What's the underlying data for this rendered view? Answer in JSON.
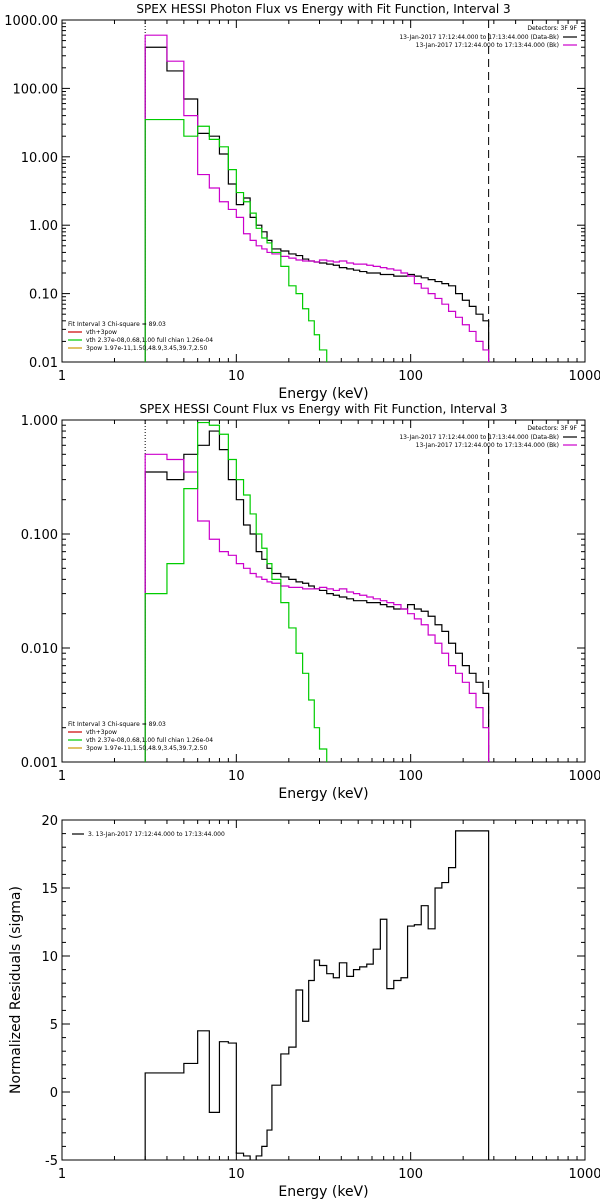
{
  "chart_data": [
    {
      "type": "line",
      "title": "SPEX HESSI Photon Flux vs Energy with Fit Function, Interval 3",
      "xlabel": "Energy (keV)",
      "ylabel": "",
      "xscale": "log",
      "yscale": "log",
      "xlim": [
        1,
        1000
      ],
      "ylim": [
        0.01,
        1000
      ],
      "xticks": [
        "1",
        "10",
        "100",
        "1000"
      ],
      "yticks": [
        "0.01",
        "0.10",
        "1.00",
        "10.00",
        "100.00",
        "1000.00"
      ],
      "legend_topright": {
        "header": "Detectors: 3F 9F",
        "entries": [
          {
            "text": "13-Jan-2017 17:12:44.000 to 17:13:44.000 (Data-Bk)",
            "color": "#000000"
          },
          {
            "text": "13-Jan-2017 17:12:44.000 to 17:13:44.000 (Bk)",
            "color": "#cc00cc"
          }
        ]
      },
      "legend_bottomleft": {
        "header": "Fit Interval 3   Chi-square = 89.03",
        "entries": [
          {
            "text": "vth+3pow",
            "color": "#cc0000"
          },
          {
            "text": "vth 2.37e-08,0.68,1.00  full chian 1.26e-04",
            "color": "#00cc00"
          },
          {
            "text": "3pow 1.97e-11,1.50,48.9,3.45,39.7,2.50",
            "color": "#cc9900"
          }
        ]
      },
      "vlines": [
        {
          "x": 3.0,
          "style": "dotted",
          "color": "#000000"
        },
        {
          "x": 280,
          "style": "dashed",
          "color": "#000000"
        }
      ],
      "series": [
        {
          "name": "Data-Bk",
          "color": "#000000",
          "step": true,
          "x": [
            3.0,
            4.0,
            5.0,
            6.0,
            7.0,
            8.0,
            9.0,
            10.0,
            11.0,
            12.0,
            13.0,
            14.0,
            15.0,
            16.0,
            18.0,
            20.0,
            22.0,
            24.0,
            26.0,
            28.0,
            30.0,
            33.0,
            36.0,
            39.0,
            43.0,
            47.0,
            51.0,
            56.0,
            61.0,
            67.0,
            73.0,
            80.0,
            88.0,
            96.0,
            105.0,
            115.0,
            126.0,
            138.0,
            151.0,
            165.0,
            181.0,
            198.0,
            217.0,
            237.0,
            260.0,
            280.0
          ],
          "y": [
            400,
            180,
            70,
            22,
            20,
            11,
            4.0,
            2.0,
            2.5,
            1.3,
            1.0,
            0.8,
            0.6,
            0.45,
            0.42,
            0.38,
            0.36,
            0.32,
            0.3,
            0.29,
            0.28,
            0.27,
            0.26,
            0.24,
            0.23,
            0.22,
            0.21,
            0.2,
            0.2,
            0.19,
            0.19,
            0.18,
            0.18,
            0.19,
            0.18,
            0.17,
            0.16,
            0.15,
            0.14,
            0.13,
            0.1,
            0.08,
            0.065,
            0.05,
            0.04,
            0.04
          ]
        },
        {
          "name": "Bk",
          "color": "#cc00cc",
          "step": true,
          "x": [
            3.0,
            4.0,
            5.0,
            6.0,
            7.0,
            8.0,
            9.0,
            10.0,
            11.0,
            12.0,
            13.0,
            14.0,
            15.0,
            16.0,
            18.0,
            20.0,
            22.0,
            24.0,
            26.0,
            28.0,
            30.0,
            33.0,
            36.0,
            39.0,
            43.0,
            47.0,
            51.0,
            56.0,
            61.0,
            67.0,
            73.0,
            80.0,
            88.0,
            96.0,
            105.0,
            115.0,
            126.0,
            138.0,
            151.0,
            165.0,
            181.0,
            198.0,
            217.0,
            237.0,
            260.0,
            280.0
          ],
          "y": [
            600,
            250,
            40,
            5.5,
            3.5,
            2.2,
            1.7,
            1.3,
            0.75,
            0.6,
            0.5,
            0.45,
            0.4,
            0.38,
            0.35,
            0.33,
            0.31,
            0.3,
            0.3,
            0.29,
            0.31,
            0.3,
            0.29,
            0.3,
            0.28,
            0.27,
            0.27,
            0.26,
            0.25,
            0.24,
            0.23,
            0.22,
            0.2,
            0.18,
            0.14,
            0.12,
            0.1,
            0.085,
            0.07,
            0.055,
            0.045,
            0.035,
            0.028,
            0.02,
            0.015,
            0.015
          ]
        },
        {
          "name": "vth",
          "color": "#00cc00",
          "step": true,
          "x": [
            3.0,
            4.0,
            5.0,
            6.0,
            7.0,
            8.0,
            9.0,
            10.0,
            11.0,
            12.0,
            13.0,
            14.0,
            15.0,
            16.0,
            18.0,
            20.0,
            22.0,
            24.0,
            26.0,
            28.0,
            30.0,
            33.0
          ],
          "y": [
            35,
            35,
            20,
            28,
            18,
            14,
            6.5,
            3.0,
            2.2,
            1.5,
            0.9,
            0.65,
            0.55,
            0.4,
            0.25,
            0.13,
            0.1,
            0.06,
            0.04,
            0.025,
            0.015,
            0.01
          ]
        }
      ]
    },
    {
      "type": "line",
      "title": "SPEX HESSI Count Flux vs Energy with Fit Function, Interval 3",
      "xlabel": "Energy (keV)",
      "ylabel": "",
      "xscale": "log",
      "yscale": "log",
      "xlim": [
        1,
        1000
      ],
      "ylim": [
        0.001,
        1.0
      ],
      "xticks": [
        "1",
        "10",
        "100",
        "1000"
      ],
      "yticks": [
        "0.001",
        "0.010",
        "0.100",
        "1.000"
      ],
      "legend_topright": {
        "header": "Detectors: 3F 9F",
        "entries": [
          {
            "text": "13-Jan-2017 17:12:44.000 to 17:13:44.000 (Data-Bk)",
            "color": "#000000"
          },
          {
            "text": "13-Jan-2017 17:12:44.000 to 17:13:44.000 (Bk)",
            "color": "#cc00cc"
          }
        ]
      },
      "legend_bottomleft": {
        "header": "Fit Interval 3   Chi-square = 89.03",
        "entries": [
          {
            "text": "vth+3pow",
            "color": "#cc0000"
          },
          {
            "text": "vth 2.37e-08,0.68,1.00  full chian 1.26e-04",
            "color": "#00cc00"
          },
          {
            "text": "3pow 1.97e-11,1.50,48.9,3.45,39.7,2.50",
            "color": "#cc9900"
          }
        ]
      },
      "vlines": [
        {
          "x": 3.0,
          "style": "dotted",
          "color": "#000000"
        },
        {
          "x": 280,
          "style": "dashed",
          "color": "#000000"
        }
      ],
      "series": [
        {
          "name": "Data-Bk",
          "color": "#000000",
          "step": true,
          "x": [
            3.0,
            4.0,
            5.0,
            6.0,
            7.0,
            8.0,
            9.0,
            10.0,
            11.0,
            12.0,
            13.0,
            14.0,
            15.0,
            16.0,
            18.0,
            20.0,
            22.0,
            24.0,
            26.0,
            28.0,
            30.0,
            33.0,
            36.0,
            39.0,
            43.0,
            47.0,
            51.0,
            56.0,
            61.0,
            67.0,
            73.0,
            80.0,
            88.0,
            96.0,
            105.0,
            115.0,
            126.0,
            138.0,
            151.0,
            165.0,
            181.0,
            198.0,
            217.0,
            237.0,
            260.0,
            280.0
          ],
          "y": [
            0.35,
            0.3,
            0.5,
            0.6,
            0.8,
            0.55,
            0.3,
            0.2,
            0.12,
            0.1,
            0.07,
            0.06,
            0.05,
            0.045,
            0.042,
            0.04,
            0.038,
            0.037,
            0.035,
            0.033,
            0.032,
            0.03,
            0.029,
            0.028,
            0.027,
            0.026,
            0.026,
            0.025,
            0.025,
            0.024,
            0.023,
            0.022,
            0.022,
            0.024,
            0.022,
            0.021,
            0.019,
            0.016,
            0.014,
            0.011,
            0.009,
            0.007,
            0.006,
            0.005,
            0.004,
            0.004
          ]
        },
        {
          "name": "Bk",
          "color": "#cc00cc",
          "step": true,
          "x": [
            3.0,
            4.0,
            5.0,
            6.0,
            7.0,
            8.0,
            9.0,
            10.0,
            11.0,
            12.0,
            13.0,
            14.0,
            15.0,
            16.0,
            18.0,
            20.0,
            22.0,
            24.0,
            26.0,
            28.0,
            30.0,
            33.0,
            36.0,
            39.0,
            43.0,
            47.0,
            51.0,
            56.0,
            61.0,
            67.0,
            73.0,
            80.0,
            88.0,
            96.0,
            105.0,
            115.0,
            126.0,
            138.0,
            151.0,
            165.0,
            181.0,
            198.0,
            217.0,
            237.0,
            260.0,
            280.0
          ],
          "y": [
            0.5,
            0.45,
            0.35,
            0.13,
            0.09,
            0.07,
            0.065,
            0.055,
            0.05,
            0.045,
            0.042,
            0.04,
            0.038,
            0.037,
            0.035,
            0.034,
            0.034,
            0.033,
            0.033,
            0.033,
            0.034,
            0.033,
            0.032,
            0.033,
            0.031,
            0.03,
            0.029,
            0.028,
            0.027,
            0.026,
            0.025,
            0.024,
            0.022,
            0.02,
            0.018,
            0.016,
            0.013,
            0.011,
            0.009,
            0.007,
            0.006,
            0.005,
            0.004,
            0.003,
            0.002,
            0.002
          ]
        },
        {
          "name": "vth",
          "color": "#00cc00",
          "step": true,
          "x": [
            3.0,
            4.0,
            5.0,
            6.0,
            7.0,
            8.0,
            9.0,
            10.0,
            11.0,
            12.0,
            13.0,
            14.0,
            15.0,
            16.0,
            18.0,
            20.0,
            22.0,
            24.0,
            26.0,
            28.0,
            30.0,
            33.0
          ],
          "y": [
            0.03,
            0.055,
            0.25,
            0.95,
            0.9,
            0.75,
            0.45,
            0.3,
            0.22,
            0.15,
            0.1,
            0.075,
            0.055,
            0.04,
            0.025,
            0.015,
            0.009,
            0.006,
            0.0035,
            0.002,
            0.0013,
            0.001
          ]
        }
      ]
    },
    {
      "type": "line",
      "title": "",
      "xlabel": "Energy (keV)",
      "ylabel": "Normalized Residuals (sigma)",
      "xscale": "log",
      "yscale": "linear",
      "xlim": [
        1,
        1000
      ],
      "ylim": [
        -5,
        20
      ],
      "xticks": [
        "1",
        "10",
        "100",
        "1000"
      ],
      "yticks": [
        "-5",
        "0",
        "5",
        "10",
        "15",
        "20"
      ],
      "legend_topleft": {
        "entries": [
          {
            "text": "3. 13-Jan-2017 17:12:44.000 to 17:13:44.000",
            "color": "#000000"
          }
        ]
      },
      "series": [
        {
          "name": "3. 13-Jan-2017 17:12:44.000 to 17:13:44.000",
          "color": "#000000",
          "step": true,
          "x": [
            3.0,
            4.0,
            5.0,
            6.0,
            7.0,
            8.0,
            9.0,
            10.0,
            11.0,
            12.0,
            13.0,
            14.0,
            15.0,
            16.0,
            18.0,
            20.0,
            22.0,
            24.0,
            26.0,
            28.0,
            30.0,
            33.0,
            36.0,
            39.0,
            43.0,
            47.0,
            51.0,
            56.0,
            61.0,
            67.0,
            73.0,
            80.0,
            88.0,
            96.0,
            105.0,
            115.0,
            126.0,
            138.0,
            151.0,
            165.0,
            181.0,
            198.0,
            217.0,
            237.0,
            260.0,
            280.0
          ],
          "y": [
            1.4,
            1.4,
            2.1,
            4.5,
            -1.5,
            3.7,
            3.6,
            -4.5,
            -4.7,
            -5.2,
            -4.7,
            -4.0,
            -2.8,
            0.5,
            2.8,
            3.3,
            7.5,
            5.2,
            8.2,
            9.7,
            9.3,
            8.7,
            8.4,
            9.5,
            8.5,
            9.0,
            9.2,
            9.4,
            10.5,
            12.7,
            7.6,
            8.2,
            8.4,
            12.2,
            12.3,
            13.7,
            12.0,
            15.0,
            15.4,
            16.5,
            19.2,
            19.2,
            19.2,
            19.2,
            19.2,
            19.2
          ]
        }
      ]
    }
  ]
}
